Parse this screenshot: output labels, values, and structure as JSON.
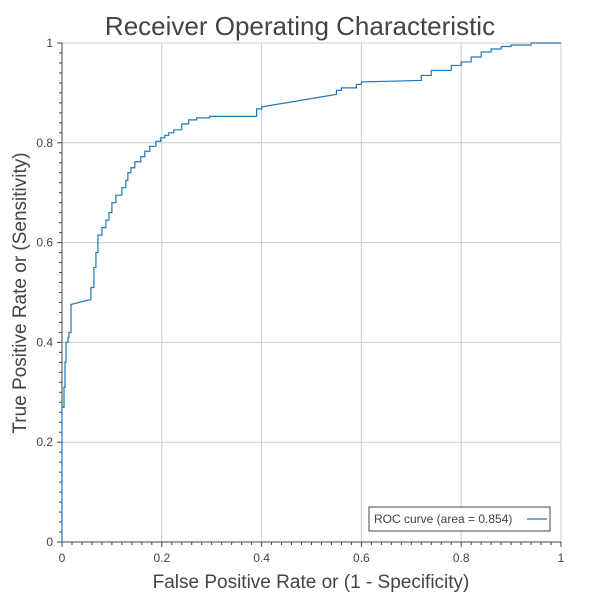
{
  "chart_data": {
    "type": "line",
    "title": "Receiver Operating Characteristic",
    "xlabel": "False Positive Rate or (1 - Specificity)",
    "ylabel": "True Positive Rate or (Sensitivity)",
    "xlim": [
      0,
      1
    ],
    "ylim": [
      0,
      1
    ],
    "xticks": [
      "0",
      "0.2",
      "0.4",
      "0.6",
      "0.8",
      "1"
    ],
    "yticks": [
      "0",
      "0.2",
      "0.4",
      "0.6",
      "0.8",
      "1"
    ],
    "grid": true,
    "legend": {
      "position": "bottom-right"
    },
    "series": [
      {
        "name": "ROC curve (area = 0.854)",
        "color": "#1f77b4",
        "x": [
          0,
          0,
          0.004,
          0.004,
          0.006,
          0.006,
          0.008,
          0.008,
          0.012,
          0.012,
          0.014,
          0.014,
          0.018,
          0.018,
          0.058,
          0.058,
          0.064,
          0.064,
          0.068,
          0.068,
          0.072,
          0.072,
          0.08,
          0.08,
          0.088,
          0.088,
          0.094,
          0.094,
          0.1,
          0.1,
          0.108,
          0.108,
          0.12,
          0.12,
          0.128,
          0.128,
          0.132,
          0.132,
          0.138,
          0.138,
          0.146,
          0.146,
          0.158,
          0.158,
          0.166,
          0.166,
          0.176,
          0.176,
          0.188,
          0.188,
          0.198,
          0.198,
          0.206,
          0.206,
          0.214,
          0.214,
          0.224,
          0.224,
          0.24,
          0.24,
          0.254,
          0.254,
          0.27,
          0.27,
          0.296,
          0.296,
          0.39,
          0.39,
          0.4,
          0.4,
          0.55,
          0.55,
          0.56,
          0.56,
          0.59,
          0.59,
          0.6,
          0.6,
          0.72,
          0.72,
          0.74,
          0.74,
          0.78,
          0.78,
          0.8,
          0.8,
          0.82,
          0.82,
          0.84,
          0.84,
          0.86,
          0.86,
          0.88,
          0.88,
          0.9,
          0.9,
          0.94,
          0.94,
          1.0
        ],
        "y": [
          0,
          0.27,
          0.27,
          0.31,
          0.31,
          0.36,
          0.36,
          0.4,
          0.4,
          0.41,
          0.41,
          0.42,
          0.42,
          0.476,
          0.486,
          0.51,
          0.51,
          0.55,
          0.55,
          0.58,
          0.58,
          0.615,
          0.615,
          0.63,
          0.63,
          0.645,
          0.645,
          0.66,
          0.66,
          0.68,
          0.68,
          0.695,
          0.695,
          0.71,
          0.71,
          0.725,
          0.725,
          0.74,
          0.74,
          0.75,
          0.75,
          0.762,
          0.762,
          0.772,
          0.772,
          0.783,
          0.783,
          0.793,
          0.793,
          0.803,
          0.803,
          0.81,
          0.81,
          0.815,
          0.815,
          0.82,
          0.82,
          0.826,
          0.826,
          0.838,
          0.838,
          0.846,
          0.846,
          0.85,
          0.85,
          0.853,
          0.853,
          0.868,
          0.868,
          0.872,
          0.897,
          0.905,
          0.905,
          0.91,
          0.91,
          0.917,
          0.917,
          0.922,
          0.925,
          0.935,
          0.935,
          0.945,
          0.945,
          0.955,
          0.955,
          0.962,
          0.962,
          0.972,
          0.972,
          0.982,
          0.982,
          0.988,
          0.988,
          0.993,
          0.993,
          0.996,
          0.996,
          1.0,
          1.0
        ]
      }
    ]
  }
}
